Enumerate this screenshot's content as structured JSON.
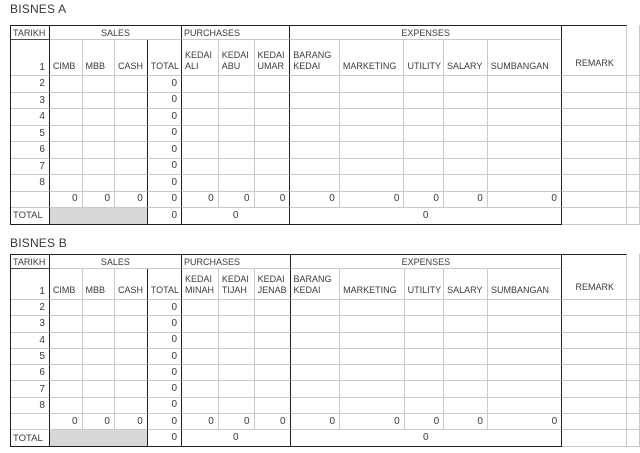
{
  "colors": {
    "grid_line": "#c9c9c9",
    "black_line": "#1f1f1f",
    "text": "#3b3b3b",
    "total_row_fill": "#d8d8d8"
  },
  "tables": [
    {
      "title": "BISNES A",
      "columns": {
        "tarikh": "TARIKH",
        "sales_group": "SALES",
        "purchases_group": "PURCHASES",
        "expenses_group": "EXPENSES",
        "remark": "REMARK",
        "sales": [
          "CIMB",
          "MBB",
          "CASH",
          "TOTAL"
        ],
        "purchases": [
          "KEDAI\nALI",
          "KEDAI\nABU",
          "KEDAI\nUMAR"
        ],
        "expenses": [
          "BARANG\nKEDAI",
          "MARKETING",
          "UTILITY",
          "SALARY",
          "SUMBANGAN"
        ]
      },
      "first_row_label": "1",
      "day_rows": [
        {
          "label": "2",
          "total": "0"
        },
        {
          "label": "3",
          "total": "0"
        },
        {
          "label": "4",
          "total": "0"
        },
        {
          "label": "5",
          "total": "0"
        },
        {
          "label": "6",
          "total": "0"
        },
        {
          "label": "7",
          "total": "0"
        },
        {
          "label": "8",
          "total": "0"
        }
      ],
      "sum_row": [
        "0",
        "0",
        "0",
        "0",
        "0",
        "0",
        "0",
        "0",
        "0",
        "0",
        "0",
        "0"
      ],
      "total_row": {
        "label": "TOTAL",
        "total": "0",
        "purchases_total": "0",
        "expenses_total": "0"
      }
    },
    {
      "title": "BISNES B",
      "columns": {
        "tarikh": "TARIKH",
        "sales_group": "SALES",
        "purchases_group": "PURCHASES",
        "expenses_group": "EXPENSES",
        "remark": "REMARK",
        "sales": [
          "CIMB",
          "MBB",
          "CASH",
          "TOTAL"
        ],
        "purchases": [
          "KEDAI\nMINAH",
          "KEDAI\nTIJAH",
          "KEDAI\nJENAB"
        ],
        "expenses": [
          "BARANG\nKEDAI",
          "MARKETING",
          "UTILITY",
          "SALARY",
          "SUMBANGAN"
        ]
      },
      "first_row_label": "1",
      "day_rows": [
        {
          "label": "2",
          "total": "0"
        },
        {
          "label": "3",
          "total": "0"
        },
        {
          "label": "4",
          "total": "0"
        },
        {
          "label": "5",
          "total": "0"
        },
        {
          "label": "6",
          "total": "0"
        },
        {
          "label": "7",
          "total": "0"
        },
        {
          "label": "8",
          "total": "0"
        }
      ],
      "sum_row": [
        "0",
        "0",
        "0",
        "0",
        "0",
        "0",
        "0",
        "0",
        "0",
        "0",
        "0",
        "0"
      ],
      "total_row": {
        "label": "TOTAL",
        "total": "0",
        "purchases_total": "0",
        "expenses_total": "0"
      }
    }
  ]
}
